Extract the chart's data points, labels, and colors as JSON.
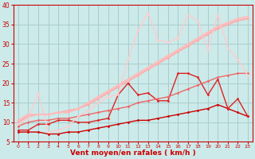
{
  "background_color": "#cceaea",
  "grid_color": "#aacccc",
  "xlabel": "Vent moyen/en rafales ( km/h )",
  "xlabel_color": "#cc0000",
  "tick_color": "#cc0000",
  "ylabel_color": "#cc0000",
  "xlim": [
    -0.5,
    23.5
  ],
  "ylim": [
    5,
    40
  ],
  "yticks": [
    5,
    10,
    15,
    20,
    25,
    30,
    35,
    40
  ],
  "xticks": [
    0,
    1,
    2,
    3,
    4,
    5,
    6,
    7,
    8,
    9,
    10,
    11,
    12,
    13,
    14,
    15,
    16,
    17,
    18,
    19,
    20,
    21,
    22,
    23
  ],
  "lines": [
    {
      "x": [
        0,
        1,
        2,
        3,
        4,
        5,
        6,
        7,
        8,
        9,
        10,
        11,
        12,
        13,
        14,
        15,
        16,
        17,
        18,
        19,
        20,
        21,
        22,
        23
      ],
      "y": [
        7.5,
        7.5,
        7.5,
        7.0,
        7.0,
        7.5,
        7.5,
        8.0,
        8.5,
        9.0,
        9.5,
        10.0,
        10.5,
        10.5,
        11.0,
        11.5,
        12.0,
        12.5,
        13.0,
        13.5,
        14.5,
        13.5,
        12.5,
        11.5
      ],
      "color": "#cc0000",
      "lw": 1.0,
      "marker": "o",
      "markersize": 2.0
    },
    {
      "x": [
        0,
        1,
        2,
        3,
        4,
        5,
        6,
        7,
        8,
        9,
        10,
        11,
        12,
        13,
        14,
        15,
        16,
        17,
        18,
        19,
        20,
        21,
        22,
        23
      ],
      "y": [
        8.0,
        8.0,
        9.5,
        9.5,
        10.5,
        10.5,
        10.0,
        10.0,
        10.5,
        11.0,
        17.0,
        20.0,
        17.0,
        17.5,
        15.5,
        15.5,
        22.5,
        22.5,
        21.5,
        17.0,
        21.0,
        13.5,
        16.0,
        11.5
      ],
      "color": "#dd2222",
      "lw": 1.0,
      "marker": "o",
      "markersize": 2.0
    },
    {
      "x": [
        0,
        1,
        2,
        3,
        4,
        5,
        6,
        7,
        8,
        9,
        10,
        11,
        12,
        13,
        14,
        15,
        16,
        17,
        18,
        19,
        20,
        21,
        22,
        23
      ],
      "y": [
        9.0,
        10.0,
        10.5,
        10.5,
        11.0,
        11.0,
        11.5,
        12.0,
        12.5,
        13.0,
        13.5,
        14.0,
        15.0,
        15.5,
        16.0,
        16.5,
        17.5,
        18.5,
        19.5,
        20.5,
        21.5,
        22.0,
        22.5,
        22.5
      ],
      "color": "#ee6666",
      "lw": 1.0,
      "marker": "o",
      "markersize": 2.0
    },
    {
      "x": [
        0,
        1,
        2,
        3,
        4,
        5,
        6,
        7,
        8,
        9,
        10,
        11,
        12,
        13,
        14,
        15,
        16,
        17,
        18,
        19,
        20,
        21,
        22,
        23
      ],
      "y": [
        10.0,
        11.5,
        12.0,
        12.0,
        12.5,
        13.0,
        13.5,
        14.5,
        16.0,
        17.5,
        19.0,
        20.5,
        22.0,
        23.5,
        25.0,
        26.5,
        28.0,
        29.5,
        31.0,
        32.5,
        34.0,
        35.0,
        36.0,
        36.5
      ],
      "color": "#ffaaaa",
      "lw": 1.2,
      "marker": "o",
      "markersize": 2.0
    },
    {
      "x": [
        0,
        1,
        2,
        3,
        4,
        5,
        6,
        7,
        8,
        9,
        10,
        11,
        12,
        13,
        14,
        15,
        16,
        17,
        18,
        19,
        20,
        21,
        22,
        23
      ],
      "y": [
        9.5,
        11.0,
        17.5,
        7.5,
        8.0,
        9.0,
        11.5,
        13.0,
        15.0,
        16.5,
        17.0,
        26.0,
        33.5,
        38.0,
        31.0,
        30.5,
        31.5,
        37.5,
        36.0,
        28.5,
        37.5,
        29.0,
        26.0,
        22.0
      ],
      "color": "#ffcccc",
      "lw": 1.0,
      "marker": "o",
      "markersize": 2.0
    },
    {
      "x": [
        0,
        1,
        2,
        3,
        4,
        5,
        6,
        7,
        8,
        9,
        10,
        11,
        12,
        13,
        14,
        15,
        16,
        17,
        18,
        19,
        20,
        21,
        22,
        23
      ],
      "y": [
        10.5,
        12.0,
        12.0,
        12.0,
        12.5,
        12.5,
        13.5,
        15.0,
        16.5,
        18.0,
        19.5,
        21.0,
        22.5,
        24.0,
        25.5,
        27.0,
        28.5,
        30.0,
        31.5,
        33.0,
        34.5,
        35.5,
        36.5,
        37.0
      ],
      "color": "#ffbbbb",
      "lw": 1.5,
      "marker": "o",
      "markersize": 2.0
    }
  ]
}
